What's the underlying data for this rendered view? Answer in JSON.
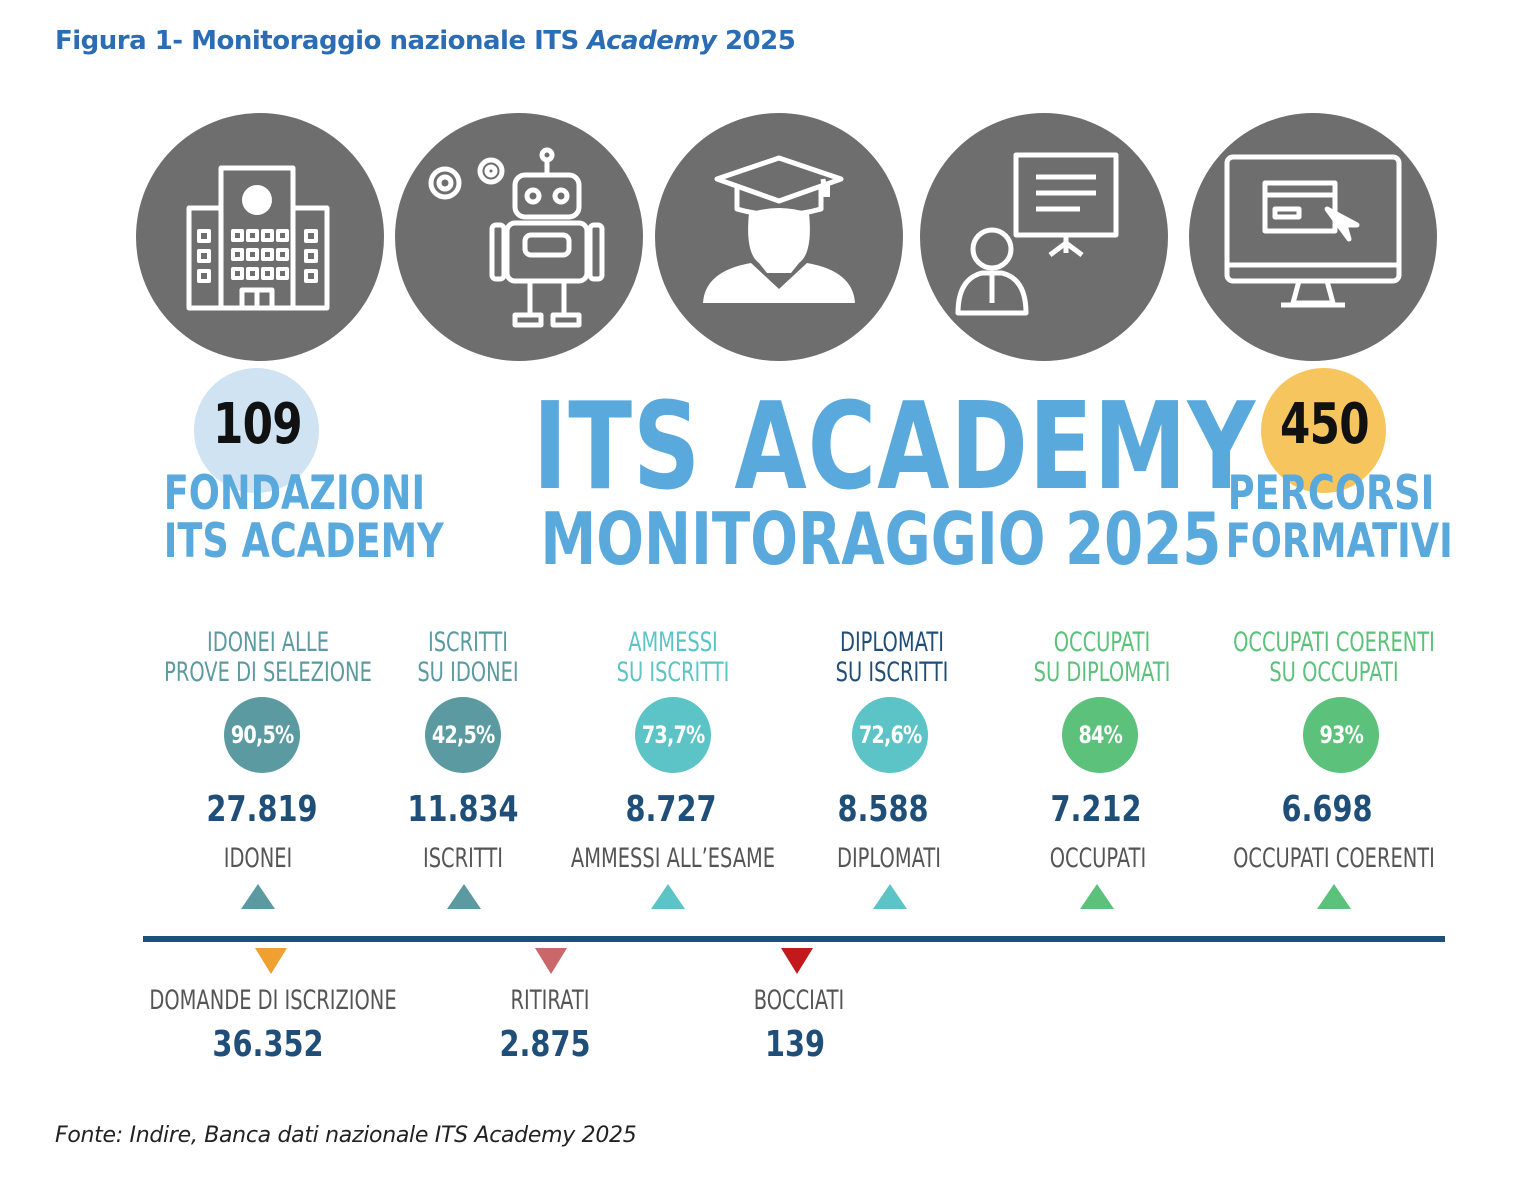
{
  "figure_title": {
    "prefix": "Figura 1- Monitoraggio nazionale ITS ",
    "italic": "Academy",
    "suffix": " 2025"
  },
  "icons": [
    {
      "name": "building-icon"
    },
    {
      "name": "robot-icon"
    },
    {
      "name": "graduate-icon"
    },
    {
      "name": "presenter-icon"
    },
    {
      "name": "computer-icon"
    }
  ],
  "colors": {
    "title_blue": "#2a6db5",
    "label_blue": "#5aa9dc",
    "icon_circle_gray": "#6e6e6e",
    "axis_navy": "#1f4f78",
    "highlight_blue": "#cfe3f3",
    "highlight_yellow": "#f7c55e"
  },
  "left_stat": {
    "number": "109",
    "line1": "FONDAZIONI",
    "line2": "ITS ACADEMY"
  },
  "center": {
    "title": "ITS ACADEMY",
    "subtitle": "MONITORAGGIO 2025"
  },
  "right_stat": {
    "number": "450",
    "line1": "PERCORSI",
    "line2": "FORMATIVI"
  },
  "metrics": [
    {
      "label1": "IDONEI ALLE",
      "label2": "PROVE DI SELEZIONE",
      "percent": "90,5%",
      "count": "27.819",
      "count_label": "IDONEI",
      "color": "#5b9aa0"
    },
    {
      "label1": "ISCRITTI",
      "label2": "SU IDONEI",
      "percent": "42,5%",
      "count": "11.834",
      "count_label": "ISCRITTI",
      "color": "#5b9aa0"
    },
    {
      "label1": "AMMESSI",
      "label2": "SU ISCRITTI",
      "percent": "73,7%",
      "count": "8.727",
      "count_label": "AMMESSI ALL’ESAME",
      "color": "#5cc3c6"
    },
    {
      "label1": "DIPLOMATI",
      "label2": "SU ISCRITTI",
      "percent": "72,6%",
      "count": "8.588",
      "count_label": "DIPLOMATI",
      "color": "#5cc3c6"
    },
    {
      "label1": "OCCUPATI",
      "label2": "SU DIPLOMATI",
      "percent": "84%",
      "count": "7.212",
      "count_label": "OCCUPATI",
      "color": "#5cc17a"
    },
    {
      "label1": "OCCUPATI COERENTI",
      "label2": "SU OCCUPATI",
      "percent": "93%",
      "count": "6.698",
      "count_label": "OCCUPATI COERENTI",
      "color": "#5cc17a"
    }
  ],
  "bottom": [
    {
      "label": "DOMANDE DI ISCRIZIONE",
      "value": "36.352",
      "color": "#f0a030"
    },
    {
      "label": "RITIRATI",
      "value": "2.875",
      "color": "#c9676a"
    },
    {
      "label": "BOCCIATI",
      "value": "139",
      "color": "#c2191c"
    }
  ],
  "source": "Fonte: Indire, Banca dati nazionale ITS Academy 2025"
}
